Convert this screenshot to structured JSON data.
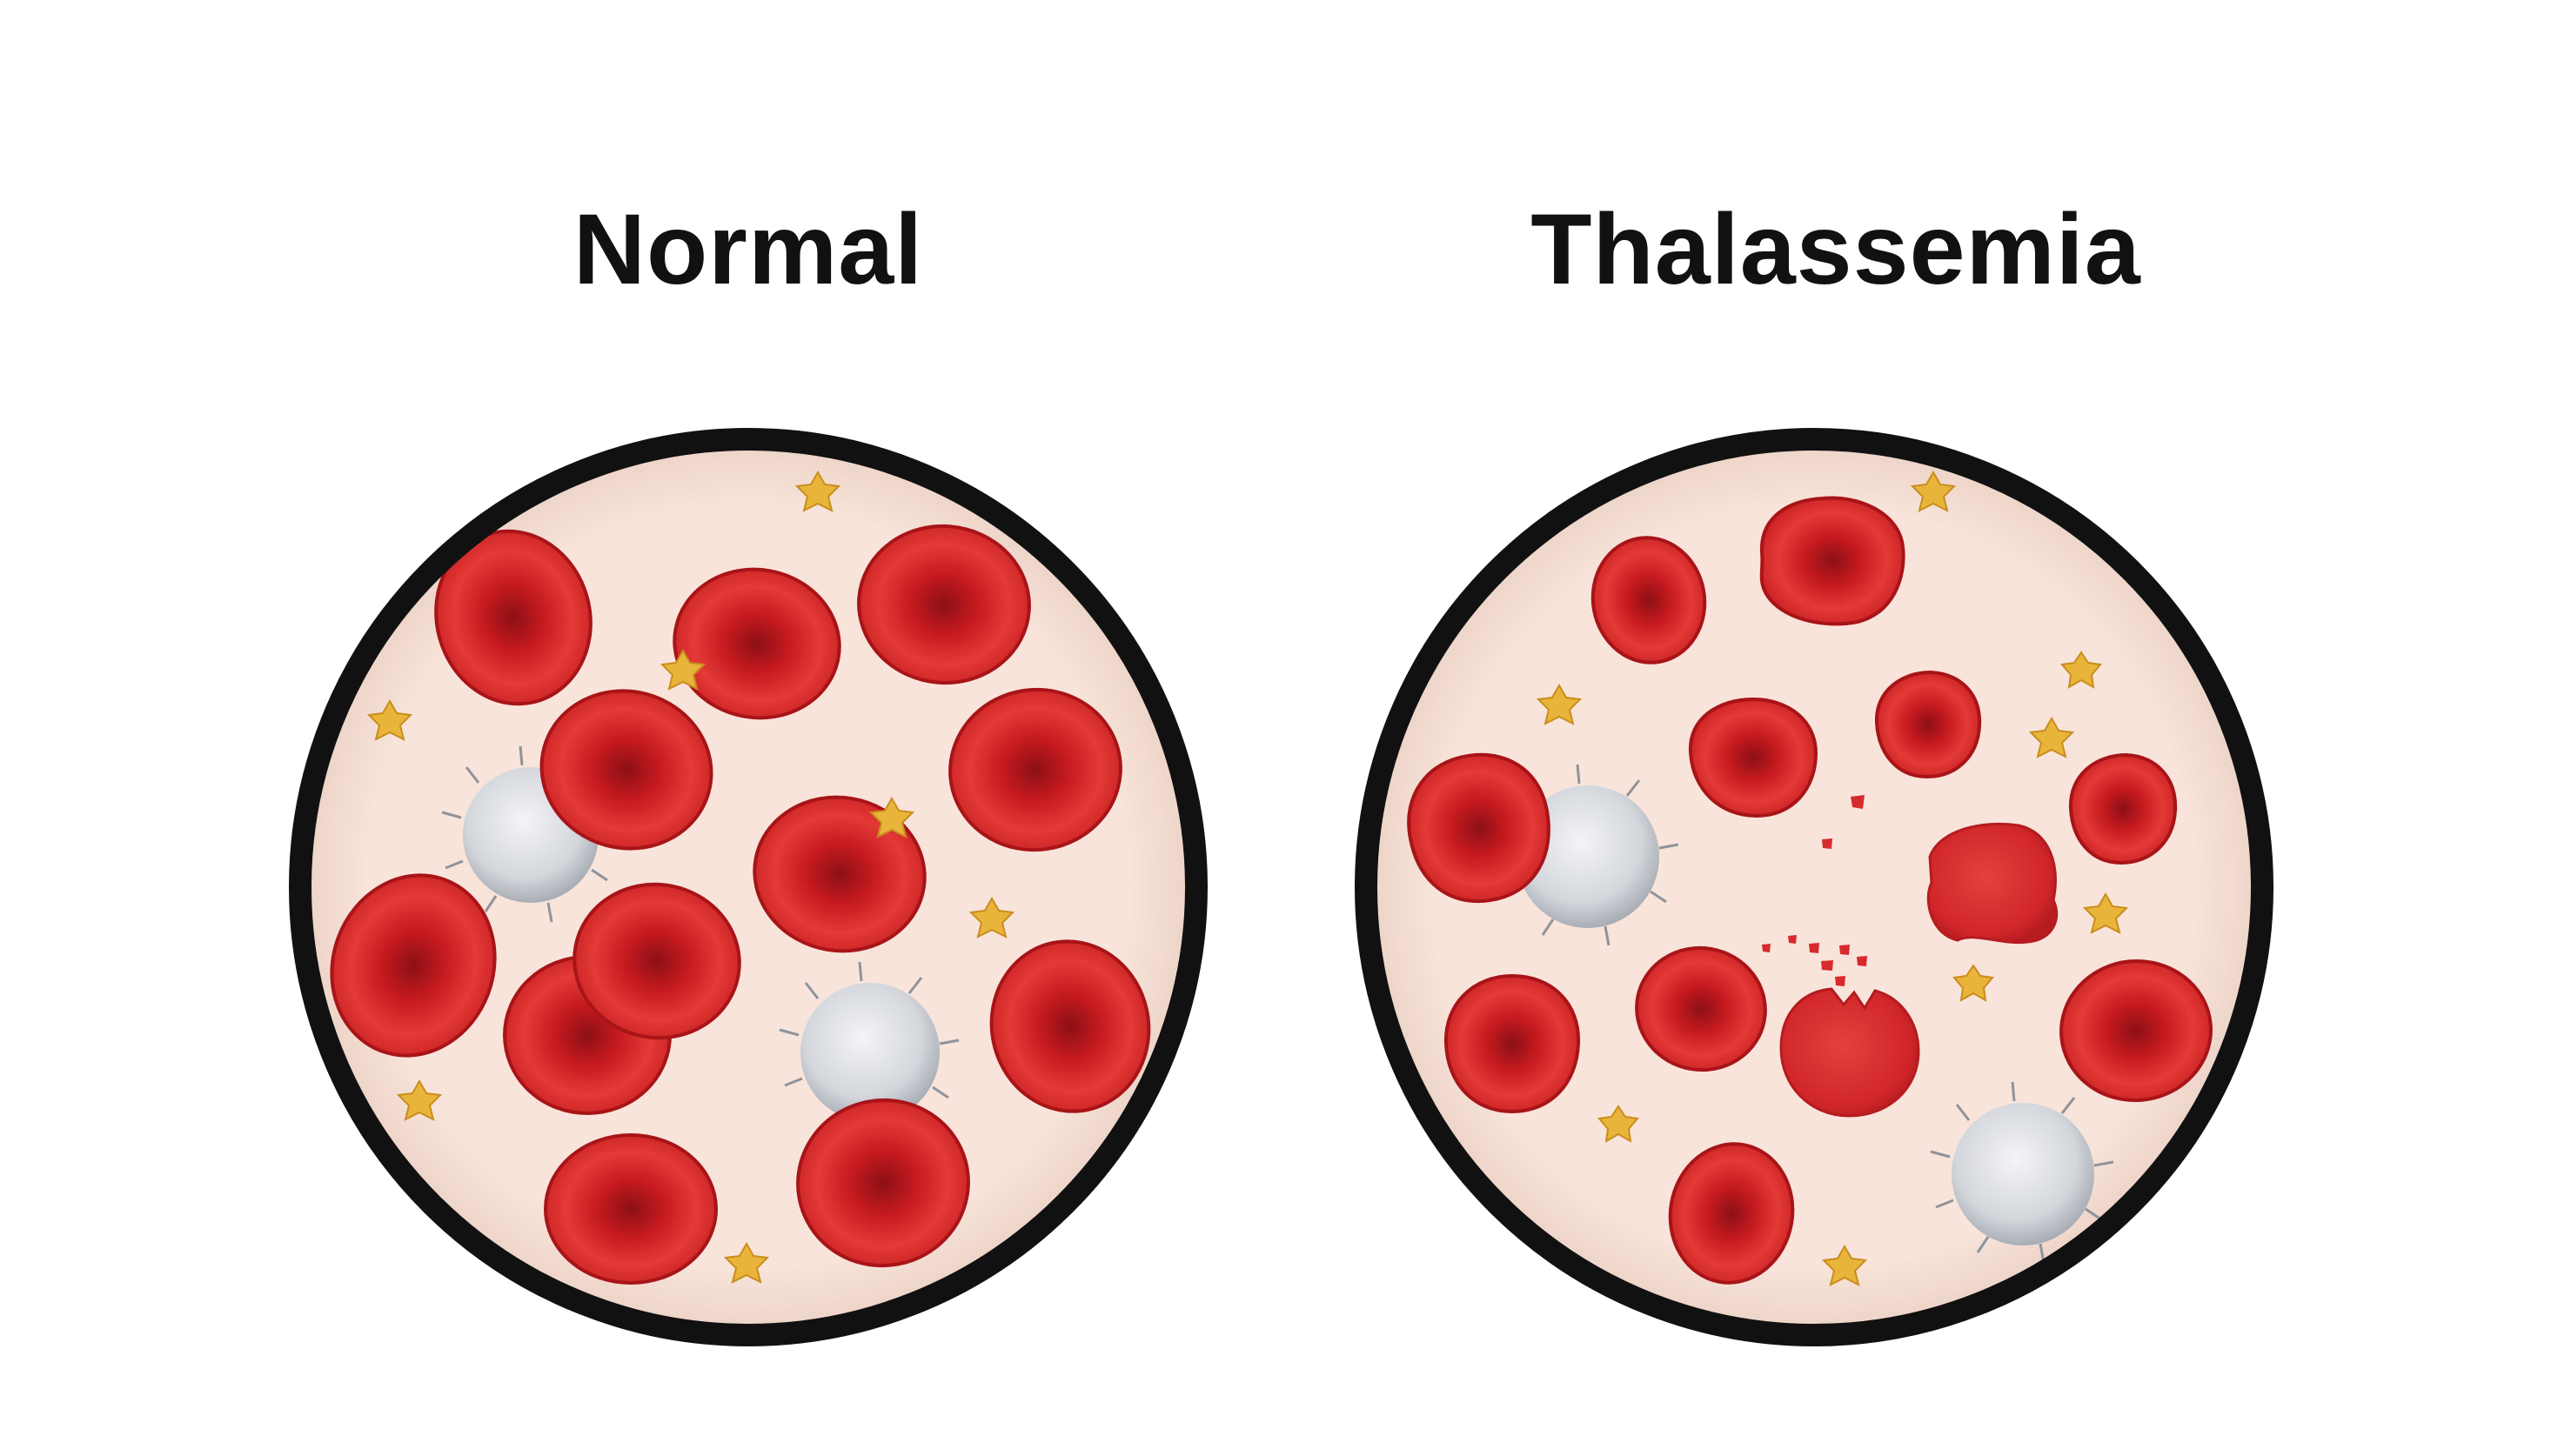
{
  "panels": [
    {
      "title": "Normal"
    },
    {
      "title": "Thalassemia"
    }
  ],
  "colors": {
    "background": "#ffffff",
    "plasma": "#f7e3d9",
    "frame": "#111111",
    "rbc_dark": "#b9141a",
    "rbc_light": "#e8393a",
    "wbc": "#d7d9de",
    "platelet": "#e9b43a"
  },
  "legend_icons": [
    "red-blood-cell-icon",
    "white-blood-cell-icon",
    "platelet-icon"
  ]
}
